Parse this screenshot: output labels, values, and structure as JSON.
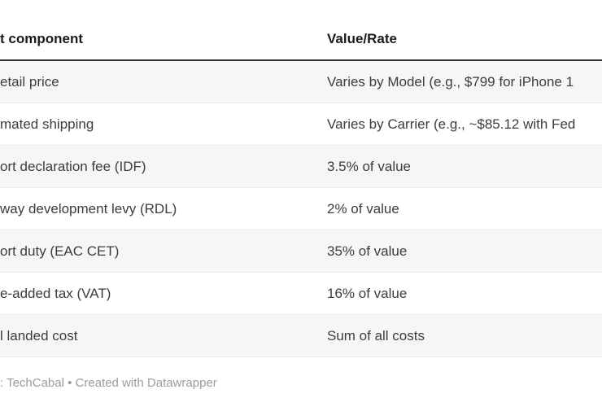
{
  "chart_data": {
    "type": "table",
    "columns": [
      "t component",
      "Value/Rate"
    ],
    "rows": [
      [
        "etail price",
        "Varies by Model (e.g., $799 for iPhone 1"
      ],
      [
        "mated shipping",
        "Varies by Carrier (e.g., ~$85.12 with Fed"
      ],
      [
        "ort declaration fee (IDF)",
        "3.5% of value"
      ],
      [
        "way development levy (RDL)",
        "2% of value"
      ],
      [
        "ort duty (EAC CET)",
        "35% of value"
      ],
      [
        "e-added tax (VAT)",
        "16% of value"
      ],
      [
        "l landed cost",
        "Sum of all costs"
      ]
    ],
    "attribution": ": TechCabal • Created with Datawrapper",
    "layout_hints": {
      "zebra_striping": true,
      "legend": "none",
      "grid": "horizontal-row-dividers",
      "cropped_left_edge": true,
      "cropped_right_edge": true
    }
  },
  "colors": {
    "background": "#ffffff",
    "header_text": "#1b1b1b",
    "body_text": "#3c3c3c",
    "zebra_row": "#f6f6f6",
    "header_rule": "#333333",
    "row_divider": "#ebebeb",
    "footer_text": "#9c9c9c"
  }
}
